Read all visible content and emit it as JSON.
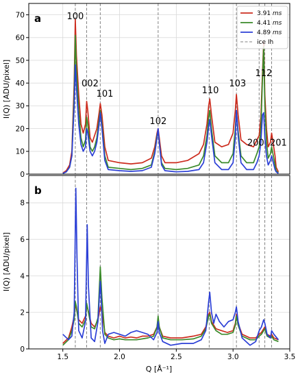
{
  "chart_data": [
    {
      "type": "line",
      "panel_label": "a",
      "xlabel": "Q [Å⁻¹]",
      "ylabel": "I(Q) [ADU/pixel]",
      "xlim": [
        1.2,
        3.5
      ],
      "ylim": [
        0,
        75
      ],
      "x_ticks": [],
      "y_ticks": [
        0,
        10,
        20,
        30,
        40,
        50,
        60,
        70
      ],
      "grid": true,
      "legend": {
        "placement": "top-right",
        "entries": [
          {
            "value": "3.91",
            "unit": "ms",
            "color": "#cc2b1d"
          },
          {
            "value": "4.41",
            "unit": "ms",
            "color": "#3a8a2a"
          },
          {
            "value": "4.89",
            "unit": "ms",
            "color": "#2b3fd6"
          },
          {
            "label": "ice Ih",
            "color": "#808080",
            "dashed": true
          }
        ]
      },
      "reference_lines": {
        "name": "ice Ih",
        "x": [
          1.61,
          1.71,
          1.83,
          2.34,
          2.79,
          3.03,
          3.23,
          3.28,
          3.34
        ]
      },
      "peak_labels": [
        {
          "text": "100",
          "x": 1.61,
          "y": 68
        },
        {
          "text": "002",
          "x": 1.74,
          "y": 38.5
        },
        {
          "text": "101",
          "x": 1.87,
          "y": 34
        },
        {
          "text": "102",
          "x": 2.34,
          "y": 22
        },
        {
          "text": "110",
          "x": 2.8,
          "y": 35.5
        },
        {
          "text": "103",
          "x": 3.04,
          "y": 38.5
        },
        {
          "text": "112",
          "x": 3.27,
          "y": 43
        },
        {
          "text": "200",
          "x": 3.2,
          "y": 12.5
        },
        {
          "text": "201",
          "x": 3.4,
          "y": 12.5
        }
      ],
      "series": [
        {
          "name": "3.91 ms",
          "color": "#cc2b1d",
          "x": [
            1.5,
            1.53,
            1.56,
            1.58,
            1.6,
            1.61,
            1.62,
            1.64,
            1.66,
            1.68,
            1.7,
            1.71,
            1.72,
            1.74,
            1.76,
            1.78,
            1.8,
            1.82,
            1.83,
            1.845,
            1.87,
            1.9,
            2.0,
            2.1,
            2.2,
            2.28,
            2.31,
            2.33,
            2.34,
            2.35,
            2.37,
            2.4,
            2.5,
            2.6,
            2.7,
            2.74,
            2.77,
            2.785,
            2.795,
            2.81,
            2.84,
            2.9,
            2.96,
            3.0,
            3.02,
            3.03,
            3.045,
            3.07,
            3.12,
            3.18,
            3.21,
            3.23,
            3.245,
            3.26,
            3.27,
            3.28,
            3.295,
            3.31,
            3.33,
            3.34,
            3.355,
            3.37,
            3.38,
            3.4
          ],
          "y": [
            0.5,
            1.5,
            4,
            10,
            40,
            68,
            52,
            35,
            22,
            18,
            22,
            32,
            28,
            16,
            14,
            17,
            20,
            27,
            31,
            26,
            12,
            6,
            5,
            4.5,
            5,
            7,
            12,
            18,
            20,
            16,
            8,
            5,
            5,
            6,
            9,
            13,
            22,
            30,
            33,
            26,
            14,
            12,
            13,
            18,
            28,
            35,
            26,
            15,
            13,
            12,
            15,
            17,
            25,
            45,
            58,
            35,
            20,
            12,
            14,
            18,
            13,
            8,
            3,
            1
          ]
        },
        {
          "name": "4.41 ms",
          "color": "#3a8a2a",
          "x": [
            1.5,
            1.53,
            1.56,
            1.58,
            1.6,
            1.61,
            1.62,
            1.64,
            1.66,
            1.68,
            1.7,
            1.71,
            1.72,
            1.74,
            1.76,
            1.78,
            1.8,
            1.82,
            1.83,
            1.845,
            1.87,
            1.9,
            2.0,
            2.1,
            2.2,
            2.28,
            2.31,
            2.33,
            2.34,
            2.35,
            2.37,
            2.4,
            2.5,
            2.6,
            2.7,
            2.74,
            2.77,
            2.785,
            2.795,
            2.81,
            2.84,
            2.9,
            2.96,
            3.0,
            3.02,
            3.03,
            3.045,
            3.07,
            3.12,
            3.18,
            3.21,
            3.23,
            3.245,
            3.26,
            3.27,
            3.28,
            3.295,
            3.31,
            3.33,
            3.34,
            3.355,
            3.37,
            3.38,
            3.4
          ],
          "y": [
            0.3,
            1,
            3,
            8,
            35,
            61,
            46,
            28,
            16,
            12,
            15,
            25,
            22,
            12,
            10,
            12,
            16,
            24,
            28,
            22,
            8,
            3,
            2.5,
            2,
            2.5,
            4,
            10,
            17,
            19,
            14,
            5,
            2.5,
            2,
            2.5,
            4,
            8,
            17,
            25,
            28,
            20,
            8,
            5,
            5,
            9,
            20,
            28,
            19,
            8,
            5,
            5,
            9,
            12,
            20,
            42,
            56,
            30,
            14,
            7,
            9,
            12,
            8,
            4,
            1.5,
            0.5
          ]
        },
        {
          "name": "4.89 ms",
          "color": "#2b3fd6",
          "x": [
            1.5,
            1.53,
            1.56,
            1.58,
            1.6,
            1.61,
            1.62,
            1.64,
            1.66,
            1.68,
            1.7,
            1.71,
            1.72,
            1.74,
            1.76,
            1.78,
            1.8,
            1.82,
            1.83,
            1.845,
            1.87,
            1.9,
            2.0,
            2.1,
            2.2,
            2.28,
            2.31,
            2.33,
            2.34,
            2.35,
            2.37,
            2.4,
            2.5,
            2.6,
            2.7,
            2.74,
            2.77,
            2.785,
            2.795,
            2.81,
            2.84,
            2.9,
            2.96,
            3.0,
            3.02,
            3.03,
            3.045,
            3.07,
            3.12,
            3.18,
            3.21,
            3.23,
            3.245,
            3.26,
            3.27,
            3.28,
            3.295,
            3.31,
            3.33,
            3.34,
            3.355,
            3.37,
            3.38,
            3.4
          ],
          "y": [
            0.3,
            1,
            3,
            8,
            30,
            48,
            38,
            22,
            13,
            10,
            12,
            20,
            18,
            10,
            8,
            10,
            14,
            22,
            27,
            20,
            6,
            2,
            1.5,
            1.2,
            1.5,
            3,
            9,
            16,
            20,
            14,
            4,
            1.5,
            1,
            1.2,
            2,
            5,
            14,
            21,
            24,
            17,
            5,
            2,
            2,
            5,
            16,
            28,
            17,
            5,
            2,
            2,
            5,
            8,
            14,
            26,
            27,
            16,
            8,
            4,
            6,
            8,
            5,
            2,
            1,
            0.3
          ]
        }
      ]
    },
    {
      "type": "line",
      "panel_label": "b",
      "xlabel": "Q [Å⁻¹]",
      "ylabel": "I(Q) [ADU/pixel]",
      "xlim": [
        1.2,
        3.5
      ],
      "ylim": [
        0,
        9.5
      ],
      "x_ticks": [
        1.5,
        2.0,
        2.5,
        3.0,
        3.5
      ],
      "y_ticks": [
        0,
        2,
        4,
        6,
        8
      ],
      "grid": true,
      "reference_lines": {
        "name": "ice Ih",
        "x": [
          1.61,
          1.71,
          1.83,
          2.34,
          2.79,
          3.03,
          3.23,
          3.28,
          3.34
        ]
      },
      "series": [
        {
          "name": "3.91 ms",
          "color": "#cc2b1d",
          "x": [
            1.5,
            1.55,
            1.58,
            1.6,
            1.61,
            1.62,
            1.64,
            1.67,
            1.7,
            1.71,
            1.72,
            1.75,
            1.78,
            1.81,
            1.83,
            1.845,
            1.87,
            1.9,
            1.95,
            2.0,
            2.05,
            2.1,
            2.15,
            2.2,
            2.25,
            2.3,
            2.33,
            2.34,
            2.35,
            2.38,
            2.45,
            2.55,
            2.65,
            2.72,
            2.76,
            2.785,
            2.795,
            2.81,
            2.85,
            2.9,
            2.95,
            3.0,
            3.02,
            3.03,
            3.045,
            3.08,
            3.15,
            3.2,
            3.23,
            3.25,
            3.27,
            3.28,
            3.3,
            3.33,
            3.34,
            3.36,
            3.4
          ],
          "y": [
            0.3,
            0.6,
            1.2,
            1.8,
            2.4,
            2.2,
            1.6,
            1.4,
            1.8,
            2.4,
            2.2,
            1.4,
            1.2,
            1.6,
            2.3,
            2.0,
            0.9,
            0.7,
            0.6,
            0.7,
            0.6,
            0.65,
            0.6,
            0.7,
            0.7,
            0.8,
            1.2,
            1.6,
            1.2,
            0.7,
            0.6,
            0.6,
            0.7,
            0.8,
            1.2,
            1.9,
            2.0,
            1.5,
            1.1,
            1.0,
            0.9,
            1.0,
            1.4,
            1.9,
            1.4,
            0.8,
            0.6,
            0.6,
            0.8,
            0.9,
            1.1,
            1.2,
            0.8,
            0.7,
            0.8,
            0.6,
            0.5
          ]
        },
        {
          "name": "4.41 ms",
          "color": "#3a8a2a",
          "x": [
            1.5,
            1.55,
            1.58,
            1.6,
            1.61,
            1.62,
            1.64,
            1.67,
            1.7,
            1.71,
            1.72,
            1.75,
            1.78,
            1.81,
            1.83,
            1.845,
            1.87,
            1.9,
            1.95,
            2.0,
            2.05,
            2.1,
            2.15,
            2.2,
            2.25,
            2.3,
            2.33,
            2.34,
            2.35,
            2.38,
            2.45,
            2.55,
            2.65,
            2.72,
            2.76,
            2.785,
            2.795,
            2.81,
            2.85,
            2.9,
            2.95,
            3.0,
            3.02,
            3.03,
            3.045,
            3.08,
            3.15,
            3.2,
            3.23,
            3.25,
            3.27,
            3.28,
            3.3,
            3.33,
            3.34,
            3.36,
            3.4
          ],
          "y": [
            0.2,
            0.5,
            1.0,
            1.6,
            2.6,
            2.3,
            1.4,
            1.2,
            1.6,
            2.5,
            2.2,
            1.2,
            1.1,
            1.7,
            4.5,
            2.8,
            0.8,
            0.6,
            0.5,
            0.55,
            0.5,
            0.5,
            0.5,
            0.55,
            0.6,
            0.7,
            1.2,
            1.8,
            1.2,
            0.6,
            0.5,
            0.5,
            0.55,
            0.7,
            1.1,
            1.8,
            1.9,
            1.4,
            1.0,
            0.8,
            0.8,
            0.9,
            1.3,
            1.8,
            1.3,
            0.7,
            0.5,
            0.5,
            0.7,
            0.8,
            1.0,
            1.1,
            0.7,
            0.6,
            0.7,
            0.5,
            0.4
          ]
        },
        {
          "name": "4.89 ms",
          "color": "#2b3fd6",
          "x": [
            1.5,
            1.55,
            1.58,
            1.6,
            1.61,
            1.615,
            1.625,
            1.64,
            1.67,
            1.7,
            1.71,
            1.715,
            1.725,
            1.75,
            1.78,
            1.81,
            1.83,
            1.835,
            1.85,
            1.87,
            1.9,
            1.95,
            2.0,
            2.05,
            2.1,
            2.15,
            2.2,
            2.25,
            2.3,
            2.33,
            2.34,
            2.35,
            2.38,
            2.45,
            2.55,
            2.65,
            2.72,
            2.76,
            2.785,
            2.795,
            2.81,
            2.83,
            2.85,
            2.88,
            2.92,
            2.96,
            3.0,
            3.02,
            3.03,
            3.045,
            3.08,
            3.15,
            3.2,
            3.23,
            3.25,
            3.27,
            3.28,
            3.3,
            3.33,
            3.34,
            3.36,
            3.4
          ],
          "y": [
            0.8,
            0.5,
            0.7,
            2.0,
            6.5,
            8.8,
            5.0,
            1.0,
            0.6,
            1.5,
            5.0,
            6.8,
            3.5,
            0.6,
            0.4,
            1.5,
            3.7,
            3.2,
            1.0,
            0.3,
            0.8,
            0.9,
            0.8,
            0.7,
            0.9,
            1.0,
            0.9,
            0.8,
            0.5,
            0.9,
            1.5,
            0.9,
            0.4,
            0.2,
            0.3,
            0.3,
            0.5,
            1.0,
            2.6,
            3.1,
            2.0,
            1.4,
            1.9,
            1.5,
            1.2,
            1.5,
            1.6,
            2.0,
            2.3,
            1.5,
            0.6,
            0.2,
            0.4,
            1.0,
            1.2,
            1.6,
            1.4,
            0.8,
            0.6,
            1.0,
            0.8,
            0.5
          ]
        }
      ]
    }
  ]
}
